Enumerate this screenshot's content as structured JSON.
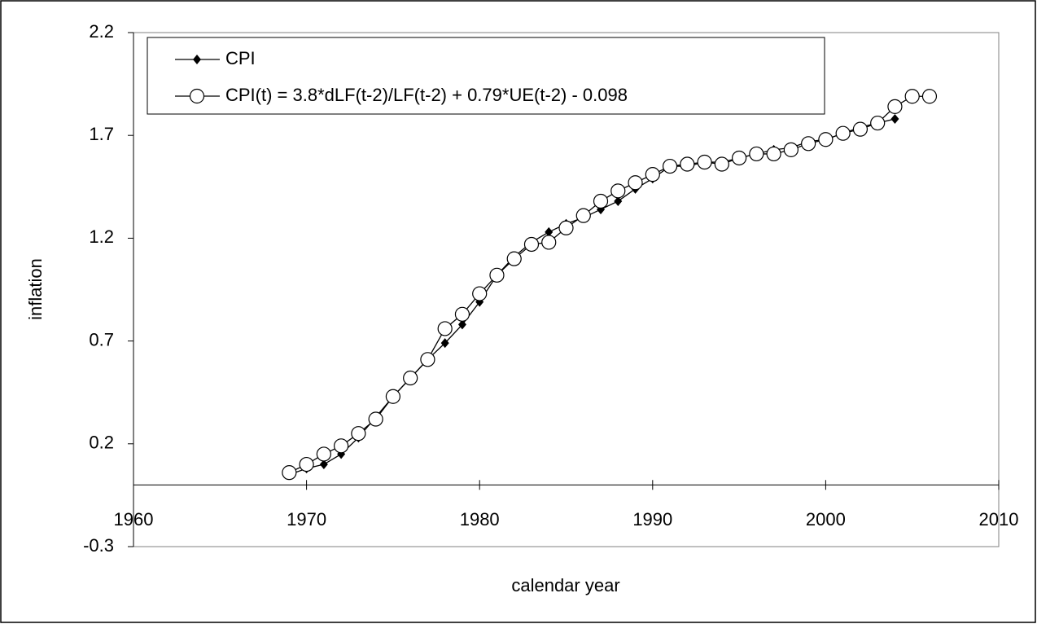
{
  "chart_data": {
    "type": "line",
    "x_label": "calendar year",
    "y_label": "inflation",
    "xlim": [
      1960,
      2010
    ],
    "xticks": [
      1960,
      1970,
      1980,
      1990,
      2000,
      2010
    ],
    "ylim": [
      -0.3,
      2.2
    ],
    "yticks": [
      -0.3,
      0.2,
      0.7,
      1.2,
      1.7,
      2.2
    ],
    "legend": "upper left",
    "series": [
      {
        "name": "CPI",
        "color": "#000000",
        "marker": "diamond",
        "x": [
          1969,
          1970,
          1971,
          1972,
          1973,
          1974,
          1975,
          1976,
          1977,
          1978,
          1979,
          1980,
          1981,
          1982,
          1983,
          1984,
          1985,
          1986,
          1987,
          1988,
          1989,
          1990,
          1991,
          1992,
          1993,
          1994,
          1995,
          1996,
          1997,
          1998,
          1999,
          2000,
          2001,
          2002,
          2003,
          2004
        ],
        "values": [
          0.05,
          0.08,
          0.1,
          0.15,
          0.23,
          0.33,
          0.43,
          0.52,
          0.61,
          0.69,
          0.78,
          0.89,
          1.02,
          1.11,
          1.18,
          1.23,
          1.27,
          1.3,
          1.34,
          1.38,
          1.44,
          1.49,
          1.55,
          1.55,
          1.57,
          1.57,
          1.59,
          1.61,
          1.63,
          1.64,
          1.67,
          1.68,
          1.71,
          1.74,
          1.76,
          1.78
        ]
      },
      {
        "name": "CPI(t) = 3.8*dLF(t-2)/LF(t-2) + 0.79*UE(t-2) - 0.098",
        "color": "#000000",
        "marker": "circle",
        "x": [
          1969,
          1970,
          1971,
          1972,
          1973,
          1974,
          1975,
          1976,
          1977,
          1978,
          1979,
          1980,
          1981,
          1982,
          1983,
          1984,
          1985,
          1986,
          1987,
          1988,
          1989,
          1990,
          1991,
          1992,
          1993,
          1994,
          1995,
          1996,
          1997,
          1998,
          1999,
          2000,
          2001,
          2002,
          2003,
          2004,
          2005,
          2006
        ],
        "values": [
          0.06,
          0.1,
          0.15,
          0.19,
          0.25,
          0.32,
          0.43,
          0.52,
          0.61,
          0.76,
          0.83,
          0.93,
          1.02,
          1.1,
          1.17,
          1.18,
          1.25,
          1.31,
          1.38,
          1.43,
          1.47,
          1.51,
          1.55,
          1.56,
          1.57,
          1.56,
          1.59,
          1.61,
          1.61,
          1.63,
          1.66,
          1.68,
          1.71,
          1.73,
          1.76,
          1.84,
          1.89,
          1.89
        ]
      }
    ]
  }
}
